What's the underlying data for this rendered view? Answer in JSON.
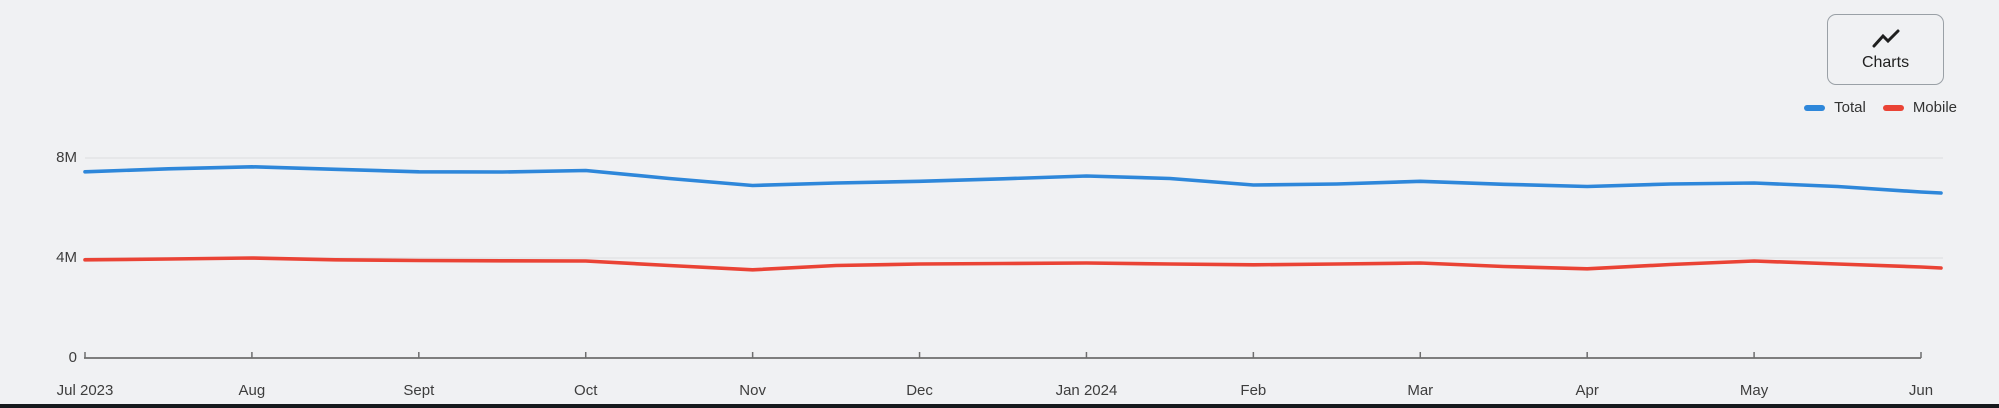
{
  "page": {
    "background": "#f0f1f3"
  },
  "toolbar": {
    "charts_button_label": "Charts",
    "charts_icon": "line-chart-zigzag-icon"
  },
  "legend": [
    {
      "label": "Total",
      "color": "#2e87da"
    },
    {
      "label": "Mobile",
      "color": "#ea4335"
    }
  ],
  "chart_data": {
    "type": "line",
    "title": "",
    "xlabel": "",
    "ylabel": "",
    "unit": "millions",
    "grid": "horizontal-only",
    "legend_position": "top-right",
    "x_tick_labels": [
      "Jul 2023",
      "Aug",
      "Sept",
      "Oct",
      "Nov",
      "Dec",
      "Jan 2024",
      "Feb",
      "Mar",
      "Apr",
      "May",
      "Jun"
    ],
    "y_ticks": [
      {
        "label": "0",
        "value": 0
      },
      {
        "label": "4M",
        "value": 4
      },
      {
        "label": "8M",
        "value": 8
      }
    ],
    "ylim": [
      0,
      8
    ],
    "x": [
      0,
      0.5,
      1,
      1.5,
      2,
      2.5,
      3,
      3.5,
      4,
      4.5,
      5,
      5.5,
      6,
      6.5,
      7,
      7.5,
      8,
      8.5,
      9,
      9.5,
      10,
      10.5,
      11,
      11.12
    ],
    "series": [
      {
        "name": "Total",
        "color": "#2e87da",
        "values": [
          7.45,
          7.57,
          7.65,
          7.55,
          7.45,
          7.44,
          7.5,
          7.18,
          6.9,
          7.0,
          7.07,
          7.17,
          7.28,
          7.18,
          6.92,
          6.96,
          7.07,
          6.95,
          6.86,
          6.96,
          7.0,
          6.86,
          6.64,
          6.6
        ]
      },
      {
        "name": "Mobile",
        "color": "#ea4335",
        "values": [
          3.93,
          3.96,
          4.0,
          3.93,
          3.9,
          3.89,
          3.88,
          3.7,
          3.53,
          3.7,
          3.76,
          3.78,
          3.8,
          3.76,
          3.73,
          3.76,
          3.8,
          3.66,
          3.57,
          3.74,
          3.88,
          3.76,
          3.64,
          3.6
        ]
      }
    ],
    "axis_colors": {
      "grid": "#e3e4e6",
      "axis": "#6e6e6e",
      "tick_text": "#3d3d3d"
    }
  }
}
